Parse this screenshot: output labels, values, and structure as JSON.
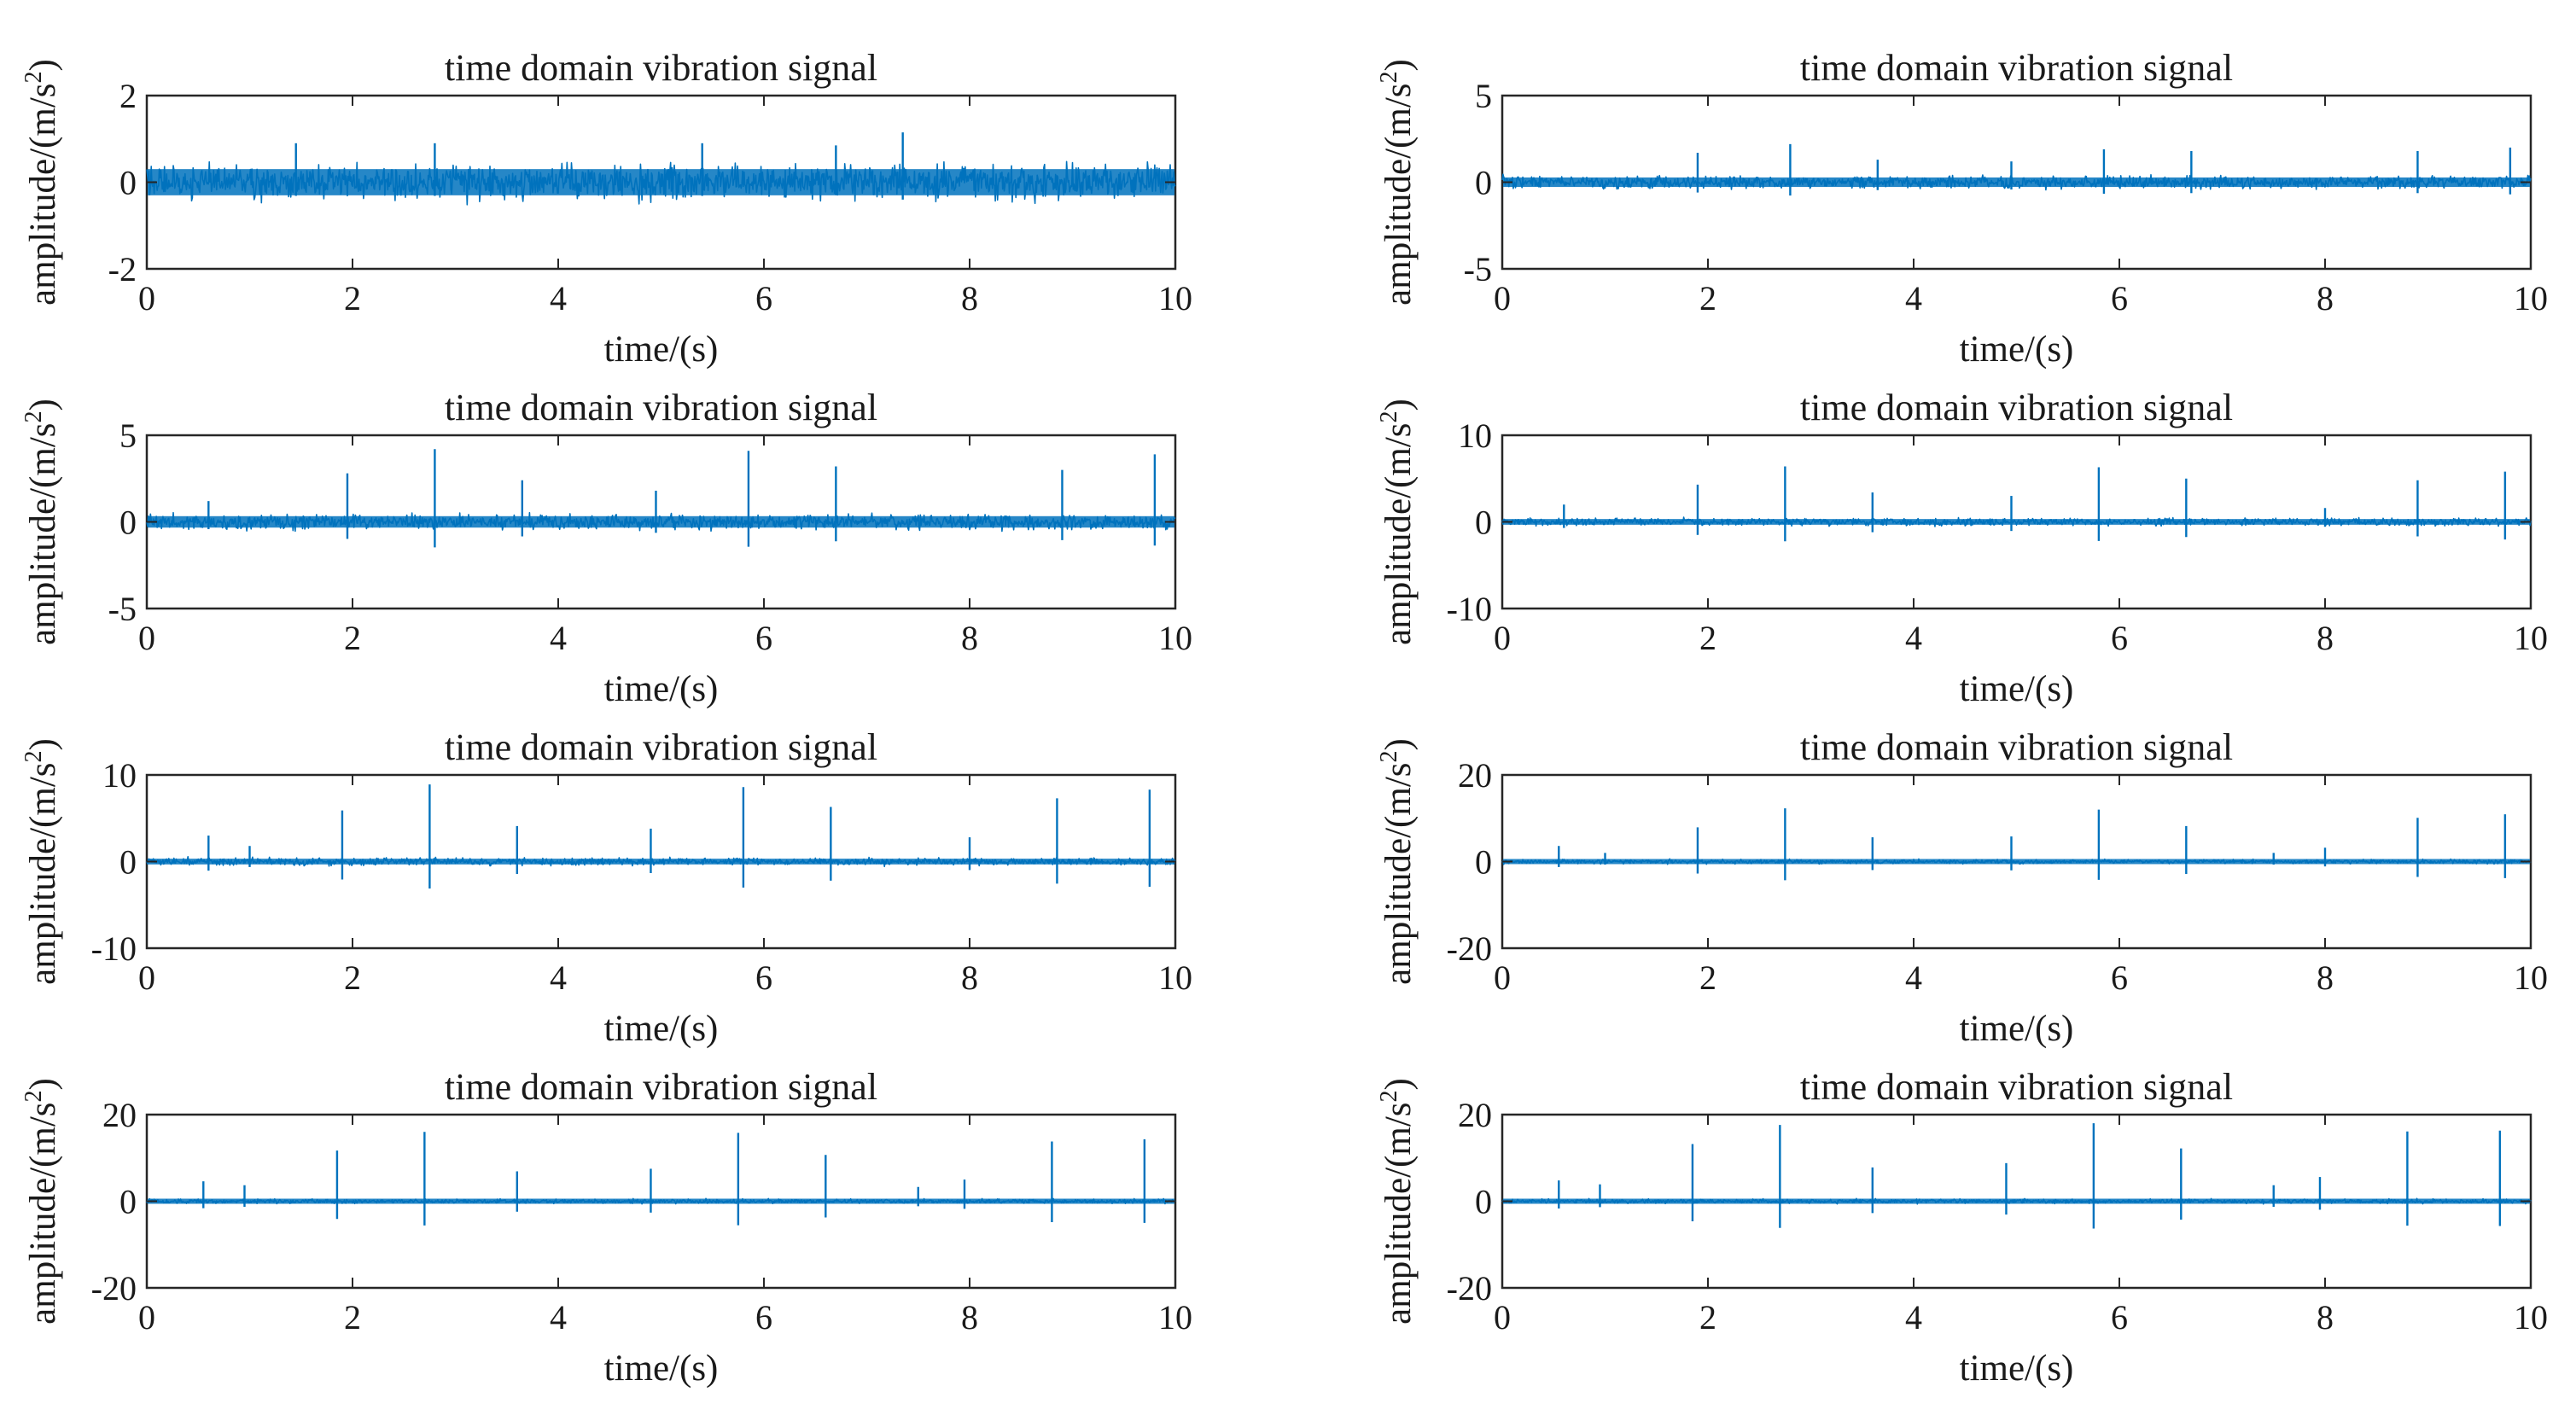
{
  "chart_data": [
    {
      "type": "line",
      "title": "time domain vibration signal",
      "xlabel": "time/(s)",
      "ylabel": "amplitude/(m/s^2)",
      "xlim": [
        0,
        10
      ],
      "ylim": [
        -2,
        2
      ],
      "xticks": [
        "0",
        "2",
        "4",
        "6",
        "8",
        "10"
      ],
      "yticks": [
        "-2",
        "0",
        "2"
      ],
      "noise_amplitude": 0.55,
      "impulses": [
        {
          "t": 1.45,
          "a": 0.9
        },
        {
          "t": 2.8,
          "a": 0.9
        },
        {
          "t": 5.4,
          "a": 0.9
        },
        {
          "t": 6.7,
          "a": 0.85
        },
        {
          "t": 7.35,
          "a": 1.15
        }
      ]
    },
    {
      "type": "line",
      "title": "time domain vibration signal",
      "xlabel": "time/(s)",
      "ylabel": "amplitude/(m/s^2)",
      "xlim": [
        0,
        10
      ],
      "ylim": [
        -5,
        5
      ],
      "xticks": [
        "0",
        "2",
        "4",
        "6",
        "8",
        "10"
      ],
      "yticks": [
        "-5",
        "0",
        "5"
      ],
      "noise_amplitude": 0.5,
      "impulses": [
        {
          "t": 1.9,
          "a": 1.7
        },
        {
          "t": 2.8,
          "a": 2.2
        },
        {
          "t": 3.65,
          "a": 1.3
        },
        {
          "t": 4.95,
          "a": 1.2
        },
        {
          "t": 5.85,
          "a": 1.9
        },
        {
          "t": 6.7,
          "a": 1.8
        },
        {
          "t": 8.9,
          "a": 1.8
        },
        {
          "t": 9.8,
          "a": 2.0
        }
      ]
    },
    {
      "type": "line",
      "title": "time domain vibration signal",
      "xlabel": "time/(s)",
      "ylabel": "amplitude/(m/s^2)",
      "xlim": [
        0,
        10
      ],
      "ylim": [
        -5,
        5
      ],
      "xticks": [
        "0",
        "2",
        "4",
        "6",
        "8",
        "10"
      ],
      "yticks": [
        "-5",
        "0",
        "5"
      ],
      "noise_amplitude": 0.6,
      "impulses": [
        {
          "t": 0.6,
          "a": 1.2
        },
        {
          "t": 1.95,
          "a": 2.8
        },
        {
          "t": 2.8,
          "a": 4.2
        },
        {
          "t": 3.65,
          "a": 2.4
        },
        {
          "t": 4.95,
          "a": 1.8
        },
        {
          "t": 5.85,
          "a": 4.1
        },
        {
          "t": 6.7,
          "a": 3.2
        },
        {
          "t": 8.9,
          "a": 3.0
        },
        {
          "t": 9.8,
          "a": 3.9
        }
      ]
    },
    {
      "type": "line",
      "title": "time domain vibration signal",
      "xlabel": "time/(s)",
      "ylabel": "amplitude/(m/s^2)",
      "xlim": [
        0,
        10
      ],
      "ylim": [
        -10,
        10
      ],
      "xticks": [
        "0",
        "2",
        "4",
        "6",
        "8",
        "10"
      ],
      "yticks": [
        "-10",
        "0",
        "10"
      ],
      "noise_amplitude": 0.6,
      "impulses": [
        {
          "t": 0.6,
          "a": 2.0
        },
        {
          "t": 1.9,
          "a": 4.3
        },
        {
          "t": 2.75,
          "a": 6.4
        },
        {
          "t": 3.6,
          "a": 3.4
        },
        {
          "t": 4.95,
          "a": 3.0
        },
        {
          "t": 5.8,
          "a": 6.3
        },
        {
          "t": 6.65,
          "a": 5.0
        },
        {
          "t": 8.0,
          "a": 1.6
        },
        {
          "t": 8.9,
          "a": 4.8
        },
        {
          "t": 9.75,
          "a": 5.8
        }
      ]
    },
    {
      "type": "line",
      "title": "time domain vibration signal",
      "xlabel": "time/(s)",
      "ylabel": "amplitude/(m/s^2)",
      "xlim": [
        0,
        10
      ],
      "ylim": [
        -10,
        10
      ],
      "xticks": [
        "0",
        "2",
        "4",
        "6",
        "8",
        "10"
      ],
      "yticks": [
        "-10",
        "0",
        "10"
      ],
      "noise_amplitude": 0.6,
      "impulses": [
        {
          "t": 0.6,
          "a": 3.0
        },
        {
          "t": 1.0,
          "a": 1.8
        },
        {
          "t": 1.9,
          "a": 5.9
        },
        {
          "t": 2.75,
          "a": 8.9
        },
        {
          "t": 3.6,
          "a": 4.1
        },
        {
          "t": 4.9,
          "a": 3.8
        },
        {
          "t": 5.8,
          "a": 8.6
        },
        {
          "t": 6.65,
          "a": 6.3
        },
        {
          "t": 8.0,
          "a": 2.8
        },
        {
          "t": 8.85,
          "a": 7.3
        },
        {
          "t": 9.75,
          "a": 8.3
        }
      ]
    },
    {
      "type": "line",
      "title": "time domain vibration signal",
      "xlabel": "time/(s)",
      "ylabel": "amplitude/(m/s^2)",
      "xlim": [
        0,
        10
      ],
      "ylim": [
        -20,
        20
      ],
      "xticks": [
        "0",
        "2",
        "4",
        "6",
        "8",
        "10"
      ],
      "yticks": [
        "-20",
        "0",
        "20"
      ],
      "noise_amplitude": 0.7,
      "impulses": [
        {
          "t": 0.55,
          "a": 3.6
        },
        {
          "t": 1.0,
          "a": 2.0
        },
        {
          "t": 1.9,
          "a": 7.9
        },
        {
          "t": 2.75,
          "a": 12.3
        },
        {
          "t": 3.6,
          "a": 5.6
        },
        {
          "t": 4.95,
          "a": 5.8
        },
        {
          "t": 5.8,
          "a": 12.0
        },
        {
          "t": 6.65,
          "a": 8.2
        },
        {
          "t": 7.5,
          "a": 2.0
        },
        {
          "t": 8.0,
          "a": 3.2
        },
        {
          "t": 8.9,
          "a": 10.1
        },
        {
          "t": 9.75,
          "a": 10.9
        }
      ]
    },
    {
      "type": "line",
      "title": "time domain vibration signal",
      "xlabel": "time/(s)",
      "ylabel": "amplitude/(m/s^2)",
      "xlim": [
        0,
        10
      ],
      "ylim": [
        -20,
        20
      ],
      "xticks": [
        "0",
        "2",
        "4",
        "6",
        "8",
        "10"
      ],
      "yticks": [
        "-20",
        "0",
        "20"
      ],
      "noise_amplitude": 0.7,
      "impulses": [
        {
          "t": 0.55,
          "a": 4.6
        },
        {
          "t": 0.95,
          "a": 3.7
        },
        {
          "t": 1.85,
          "a": 11.7
        },
        {
          "t": 2.7,
          "a": 16.0
        },
        {
          "t": 3.6,
          "a": 6.9
        },
        {
          "t": 4.9,
          "a": 7.5
        },
        {
          "t": 5.75,
          "a": 15.8
        },
        {
          "t": 6.6,
          "a": 10.7
        },
        {
          "t": 7.5,
          "a": 3.3
        },
        {
          "t": 7.95,
          "a": 5.0
        },
        {
          "t": 8.8,
          "a": 13.8
        },
        {
          "t": 9.7,
          "a": 14.3
        }
      ]
    },
    {
      "type": "line",
      "title": "time domain vibration signal",
      "xlabel": "time/(s)",
      "ylabel": "amplitude/(m/s^2)",
      "xlim": [
        0,
        10
      ],
      "ylim": [
        -20,
        20
      ],
      "xticks": [
        "0",
        "2",
        "4",
        "6",
        "8",
        "10"
      ],
      "yticks": [
        "-20",
        "0",
        "20"
      ],
      "noise_amplitude": 0.7,
      "impulses": [
        {
          "t": 0.55,
          "a": 4.8
        },
        {
          "t": 0.95,
          "a": 3.9
        },
        {
          "t": 1.85,
          "a": 13.2
        },
        {
          "t": 2.7,
          "a": 17.6
        },
        {
          "t": 3.6,
          "a": 7.8
        },
        {
          "t": 4.9,
          "a": 8.8
        },
        {
          "t": 5.75,
          "a": 18.0
        },
        {
          "t": 6.6,
          "a": 12.2
        },
        {
          "t": 7.5,
          "a": 3.7
        },
        {
          "t": 7.95,
          "a": 5.6
        },
        {
          "t": 8.8,
          "a": 16.1
        },
        {
          "t": 9.7,
          "a": 16.3
        }
      ]
    }
  ],
  "colors": {
    "signal": "#0072bd",
    "axes": "#262626",
    "background": "#ffffff"
  }
}
